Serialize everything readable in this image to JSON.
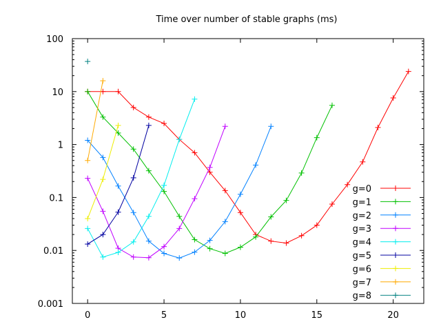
{
  "chart_data": {
    "type": "line",
    "title": "Time over number of stable graphs (ms)",
    "xlabel": "",
    "ylabel": "",
    "xlim": [
      -1,
      22
    ],
    "ylim": [
      0.001,
      100
    ],
    "yscale": "log",
    "x_ticks": [
      0,
      5,
      10,
      15,
      20
    ],
    "x_tick_labels": [
      "0",
      "5",
      "10",
      "15",
      "20"
    ],
    "y_ticks": [
      0.001,
      0.01,
      0.1,
      1,
      10,
      100
    ],
    "y_tick_labels": [
      "0.001",
      "0.01",
      "0.1",
      "1",
      "10",
      "100"
    ],
    "grid": false,
    "legend_position": "bottom-right",
    "series": [
      {
        "name": "g=0",
        "color": "#ff0000",
        "x": [
          0,
          1,
          2,
          3,
          4,
          5,
          6,
          7,
          8,
          9,
          10,
          11,
          12,
          13,
          14,
          15,
          16,
          17,
          18,
          19,
          20,
          21
        ],
        "y": [
          10,
          10,
          10,
          5,
          3.3,
          2.5,
          1.25,
          0.7,
          0.3,
          0.135,
          0.052,
          0.02,
          0.015,
          0.0138,
          0.019,
          0.03,
          0.075,
          0.175,
          0.47,
          2.1,
          7.6,
          24
        ]
      },
      {
        "name": "g=1",
        "color": "#00c000",
        "x": [
          0,
          1,
          2,
          3,
          4,
          5,
          6,
          7,
          8,
          9,
          10,
          11,
          12,
          13,
          14,
          15,
          16
        ],
        "y": [
          10,
          3.3,
          1.65,
          0.82,
          0.32,
          0.13,
          0.044,
          0.016,
          0.0108,
          0.0088,
          0.0115,
          0.018,
          0.043,
          0.088,
          0.29,
          1.35,
          5.5
        ]
      },
      {
        "name": "g=2",
        "color": "#0080ff",
        "x": [
          0,
          1,
          2,
          3,
          4,
          5,
          6,
          7,
          8,
          9,
          10,
          11,
          12
        ],
        "y": [
          1.2,
          0.57,
          0.165,
          0.052,
          0.015,
          0.0088,
          0.0072,
          0.0093,
          0.0155,
          0.035,
          0.115,
          0.41,
          2.2
        ]
      },
      {
        "name": "g=3",
        "color": "#c000ff",
        "x": [
          0,
          1,
          2,
          3,
          4,
          5,
          6,
          7,
          8,
          9
        ],
        "y": [
          0.23,
          0.055,
          0.011,
          0.0075,
          0.0073,
          0.0118,
          0.026,
          0.095,
          0.37,
          2.2
        ]
      },
      {
        "name": "g=4",
        "color": "#00eeee",
        "x": [
          0,
          1,
          2,
          3,
          4,
          5,
          6,
          7
        ],
        "y": [
          0.026,
          0.0075,
          0.0092,
          0.0145,
          0.044,
          0.17,
          1.25,
          7.2
        ]
      },
      {
        "name": "g=5",
        "color": "#0000a0",
        "x": [
          0,
          1,
          2,
          3,
          4
        ],
        "y": [
          0.0132,
          0.02,
          0.053,
          0.235,
          2.3
        ]
      },
      {
        "name": "g=6",
        "color": "#eeee00",
        "x": [
          0,
          1,
          2
        ],
        "y": [
          0.04,
          0.22,
          2.3
        ]
      },
      {
        "name": "g=7",
        "color": "#ffaa00",
        "x": [
          0,
          1
        ],
        "y": [
          0.5,
          16
        ]
      },
      {
        "name": "g=8",
        "color": "#008080",
        "x": [
          0
        ],
        "y": [
          37
        ]
      }
    ]
  }
}
